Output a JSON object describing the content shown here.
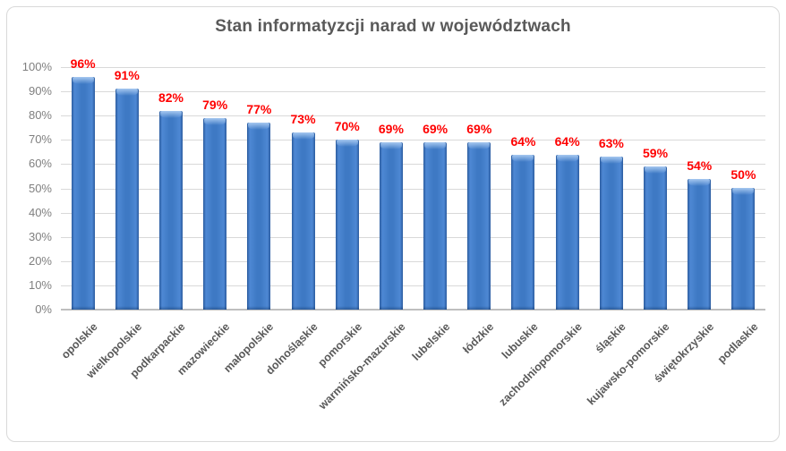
{
  "title": "Stan informatyzcji narad w województwach",
  "chart_data": {
    "type": "bar",
    "title": "Stan informatyzcji narad w województwach",
    "categories": [
      "opolskie",
      "wielkopolskie",
      "podkarpackie",
      "mazowieckie",
      "małopolskie",
      "dolnośląskie",
      "pomorskie",
      "warmińsko-mazurskie",
      "lubelskie",
      "łódzkie",
      "lubuskie",
      "zachodniopomorskie",
      "śląskie",
      "kujawsko-pomorskie",
      "świętokrzyskie",
      "podlaskie"
    ],
    "values": [
      96,
      91,
      82,
      79,
      77,
      73,
      70,
      69,
      69,
      69,
      64,
      64,
      63,
      59,
      54,
      50
    ],
    "data_labels": [
      "96%",
      "91%",
      "82%",
      "79%",
      "77%",
      "73%",
      "70%",
      "69%",
      "69%",
      "69%",
      "64%",
      "64%",
      "63%",
      "59%",
      "54%",
      "50%"
    ],
    "y_tick_labels": [
      "0%",
      "10%",
      "20%",
      "30%",
      "40%",
      "50%",
      "60%",
      "70%",
      "80%",
      "90%",
      "100%"
    ],
    "y_tick_values": [
      0,
      10,
      20,
      30,
      40,
      50,
      60,
      70,
      80,
      90,
      100
    ],
    "ylim": [
      0,
      100
    ],
    "xlabel": "",
    "ylabel": "",
    "grid": true,
    "legend": false
  },
  "colors": {
    "bar_body": "#3E79C4",
    "bar_edge": "#2A5B9E",
    "bar_highlight": "#A6C8F0",
    "data_label": "#FF0000",
    "title_text": "#595959",
    "y_axis_text": "#7F7F7F",
    "x_axis_text": "#595959",
    "gridline": "#D9D9D9",
    "axis_line": "#BFBFBF",
    "chart_border": "#D9D9D9",
    "background": "#FFFFFF"
  }
}
